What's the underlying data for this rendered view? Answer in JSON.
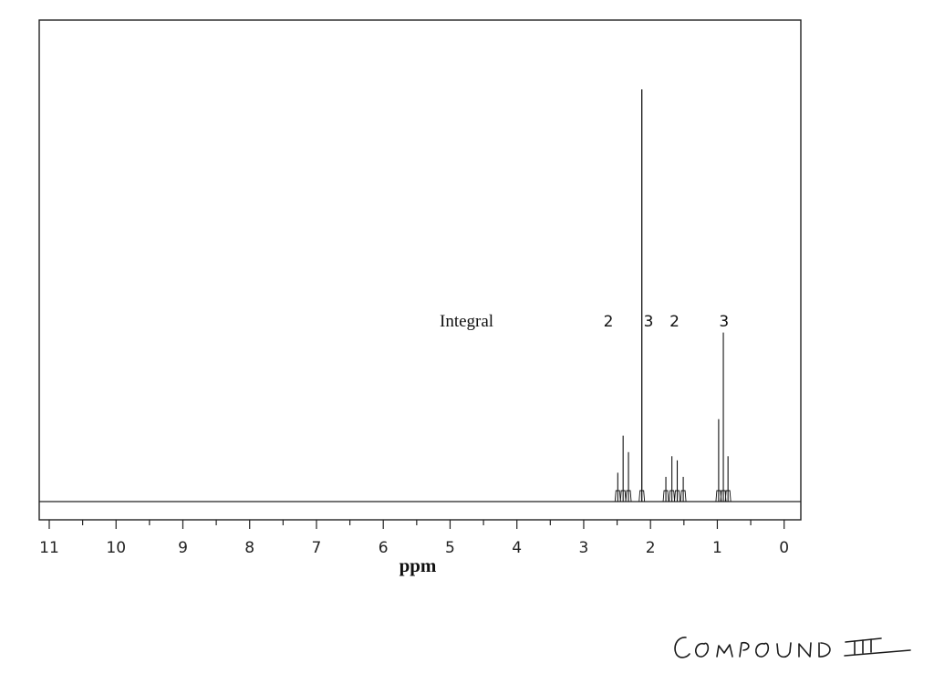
{
  "chart_data": {
    "type": "line",
    "xlabel": "ppm",
    "xlim": [
      11.15,
      -0.25
    ],
    "x_reversed": true,
    "ylim": [
      0,
      1.0
    ],
    "grid": false,
    "x_ticks": [
      "11",
      "10",
      "9",
      "8",
      "7",
      "6",
      "5",
      "4",
      "3",
      "2",
      "1",
      "0"
    ],
    "integral_label": "Integral",
    "integrals": [
      {
        "value": "2",
        "ppm": 2.63
      },
      {
        "value": "3",
        "ppm": 2.03
      },
      {
        "value": "2",
        "ppm": 1.64
      },
      {
        "value": "3",
        "ppm": 0.9
      }
    ],
    "peaks": [
      {
        "ppm": 2.49,
        "height": 0.07
      },
      {
        "ppm": 2.41,
        "height": 0.16
      },
      {
        "ppm": 2.33,
        "height": 0.12
      },
      {
        "ppm": 2.13,
        "height": 1.0
      },
      {
        "ppm": 1.77,
        "height": 0.06
      },
      {
        "ppm": 1.68,
        "height": 0.11
      },
      {
        "ppm": 1.6,
        "height": 0.1
      },
      {
        "ppm": 1.51,
        "height": 0.06
      },
      {
        "ppm": 0.98,
        "height": 0.2
      },
      {
        "ppm": 0.91,
        "height": 0.41
      },
      {
        "ppm": 0.84,
        "height": 0.11
      }
    ]
  },
  "annotation": {
    "handwritten": "COMPOUND III"
  }
}
